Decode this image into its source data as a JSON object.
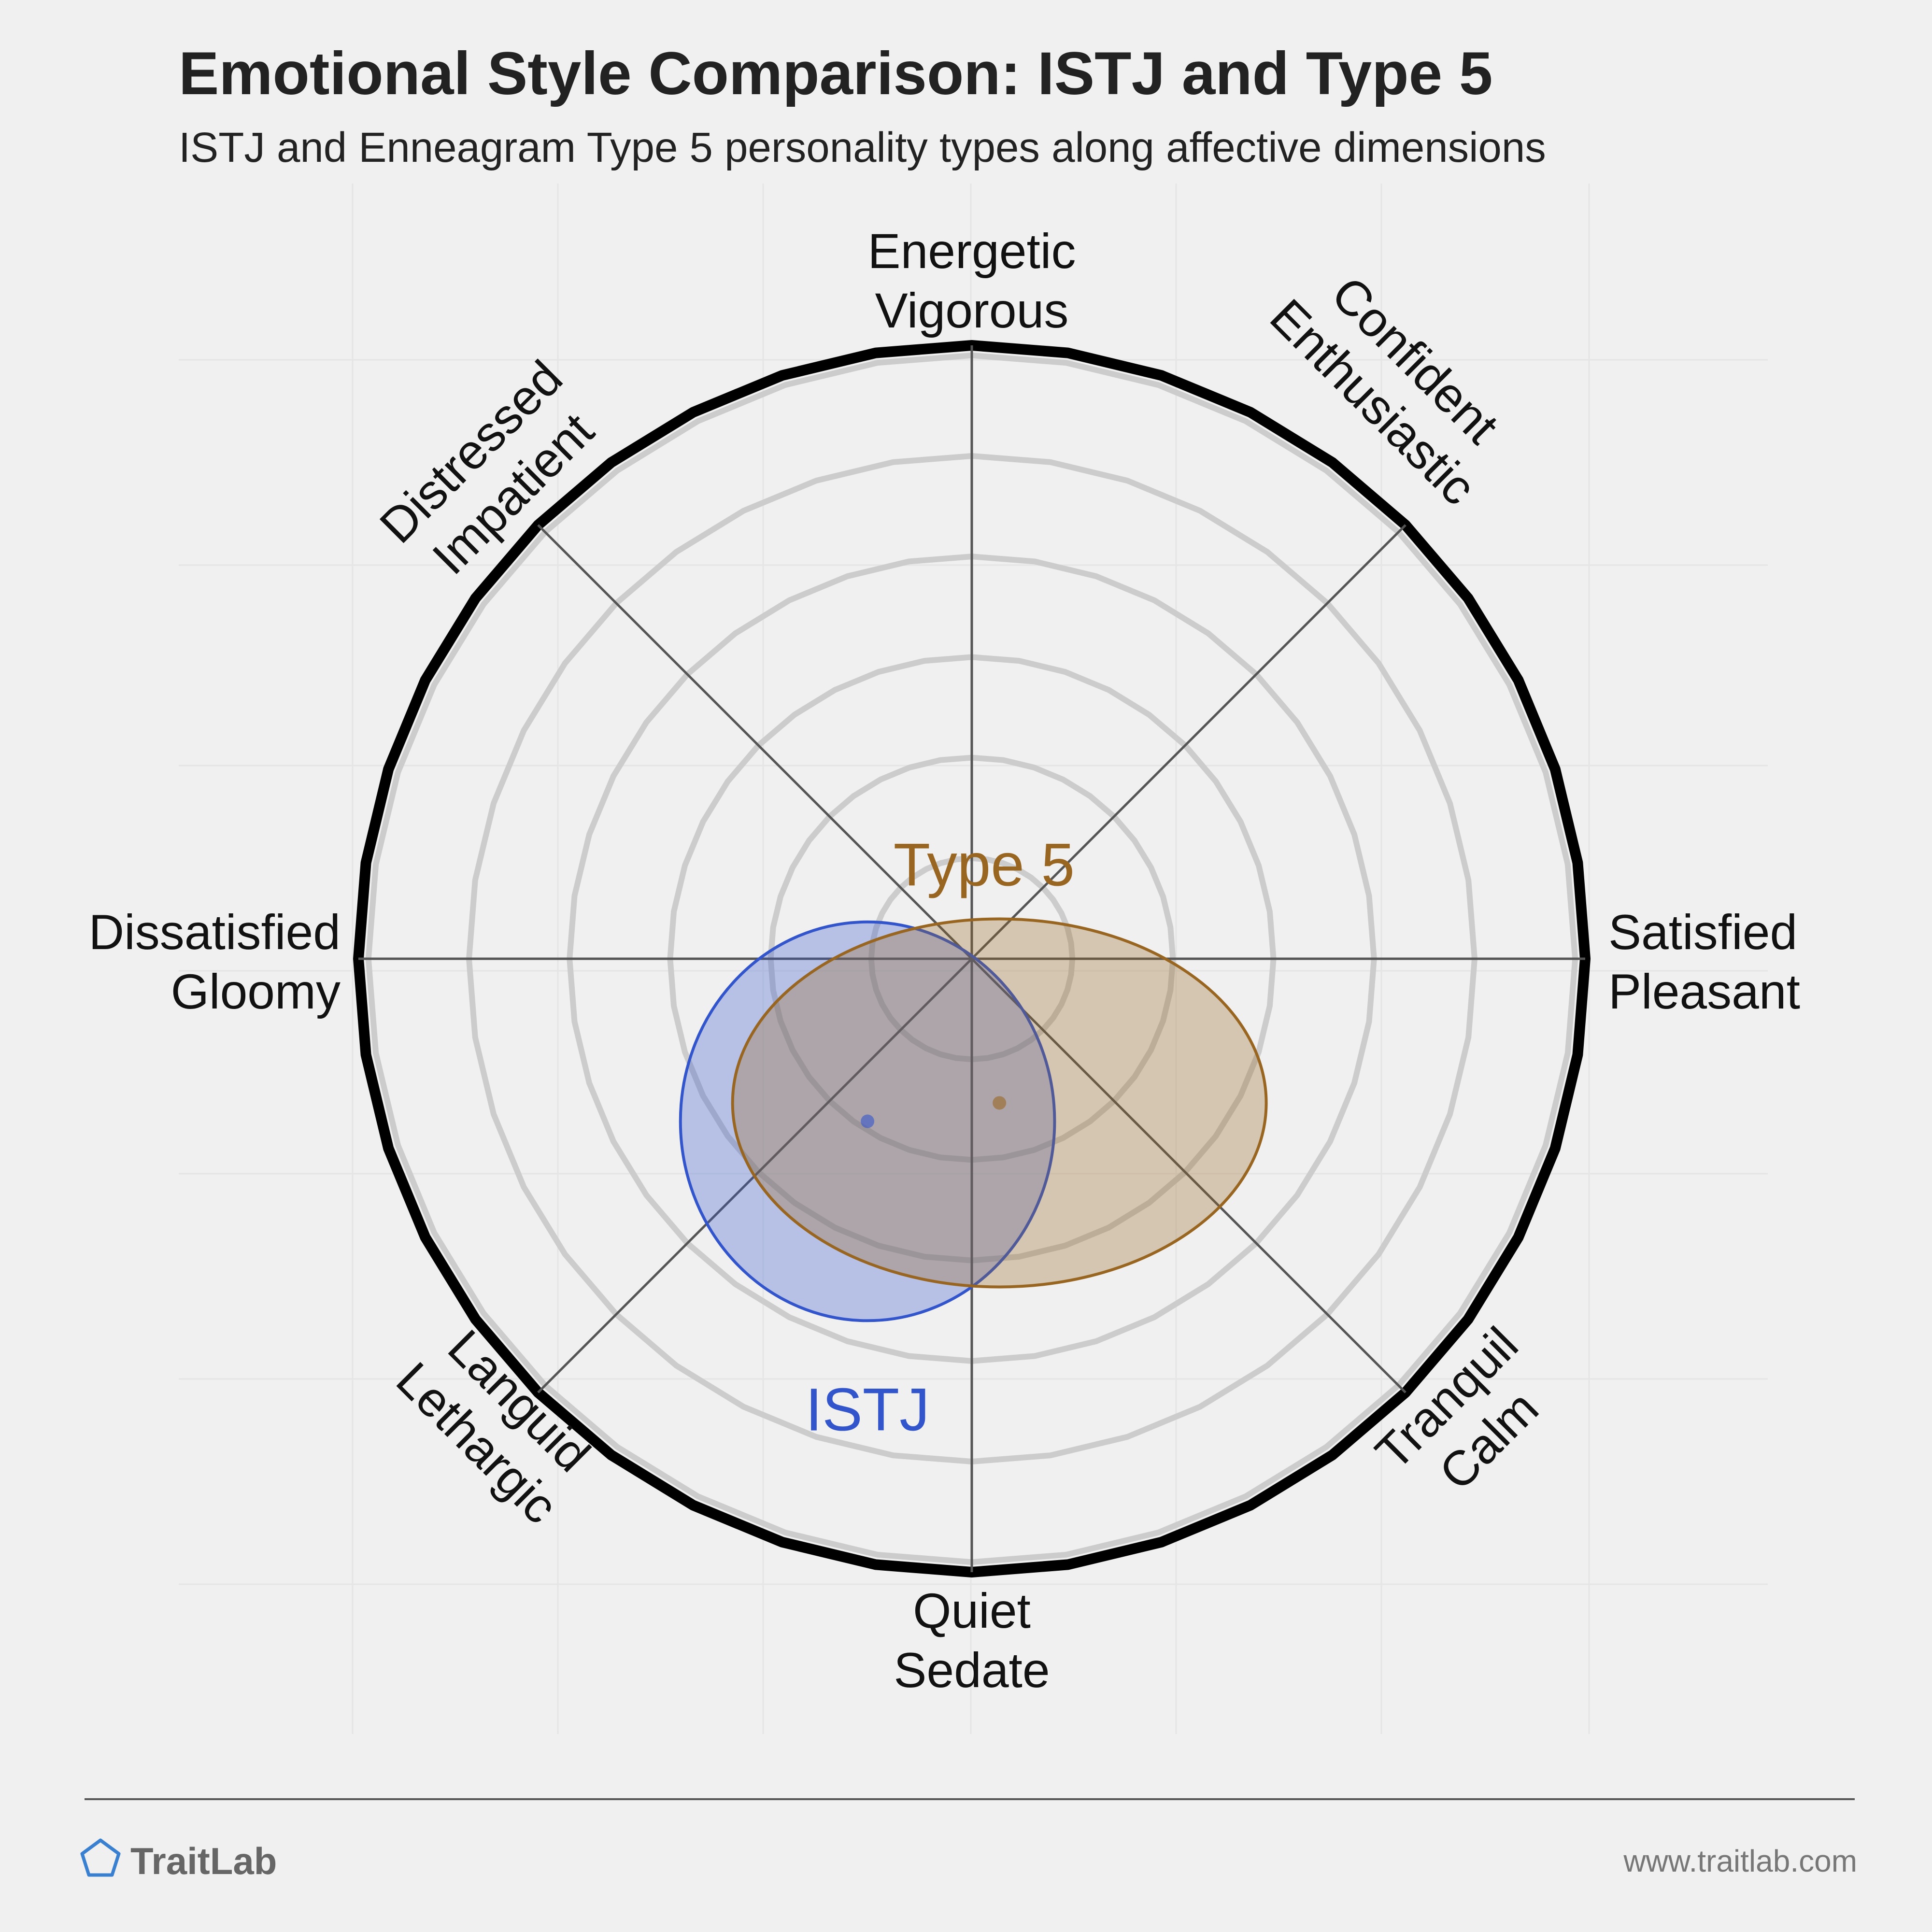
{
  "chart_data": {
    "type": "scatter",
    "title": "Emotional Style Comparison: ISTJ and Type 5",
    "subtitle": "ISTJ and Enneagram Type 5 personality types along affective dimensions",
    "xlim": [
      -1,
      1
    ],
    "ylim": [
      -1,
      1
    ],
    "grid": true,
    "axes": [
      {
        "direction": "top",
        "labels": [
          "Energetic",
          "Vigorous"
        ]
      },
      {
        "direction": "top-right",
        "labels": [
          "Confident",
          "Enthusiastic"
        ]
      },
      {
        "direction": "right",
        "labels": [
          "Satisfied",
          "Pleasant"
        ]
      },
      {
        "direction": "bottom-right",
        "labels": [
          "Tranquil",
          "Calm"
        ]
      },
      {
        "direction": "bottom",
        "labels": [
          "Quiet",
          "Sedate"
        ]
      },
      {
        "direction": "bottom-left",
        "labels": [
          "Languid",
          "Lethargic"
        ]
      },
      {
        "direction": "left",
        "labels": [
          "Dissatisfied",
          "Gloomy"
        ]
      },
      {
        "direction": "top-left",
        "labels": [
          "Distressed",
          "Impatient"
        ]
      }
    ],
    "series": [
      {
        "name": "ISTJ",
        "x": -0.17,
        "y": -0.265,
        "rx": 0.305,
        "ry": 0.325,
        "color": "#3355cc"
      },
      {
        "name": "Type 5",
        "x": 0.045,
        "y": -0.235,
        "rx": 0.435,
        "ry": 0.3,
        "color": "#996622"
      }
    ]
  },
  "footer": {
    "brand": "TraitLab",
    "url": "www.traitlab.com"
  }
}
